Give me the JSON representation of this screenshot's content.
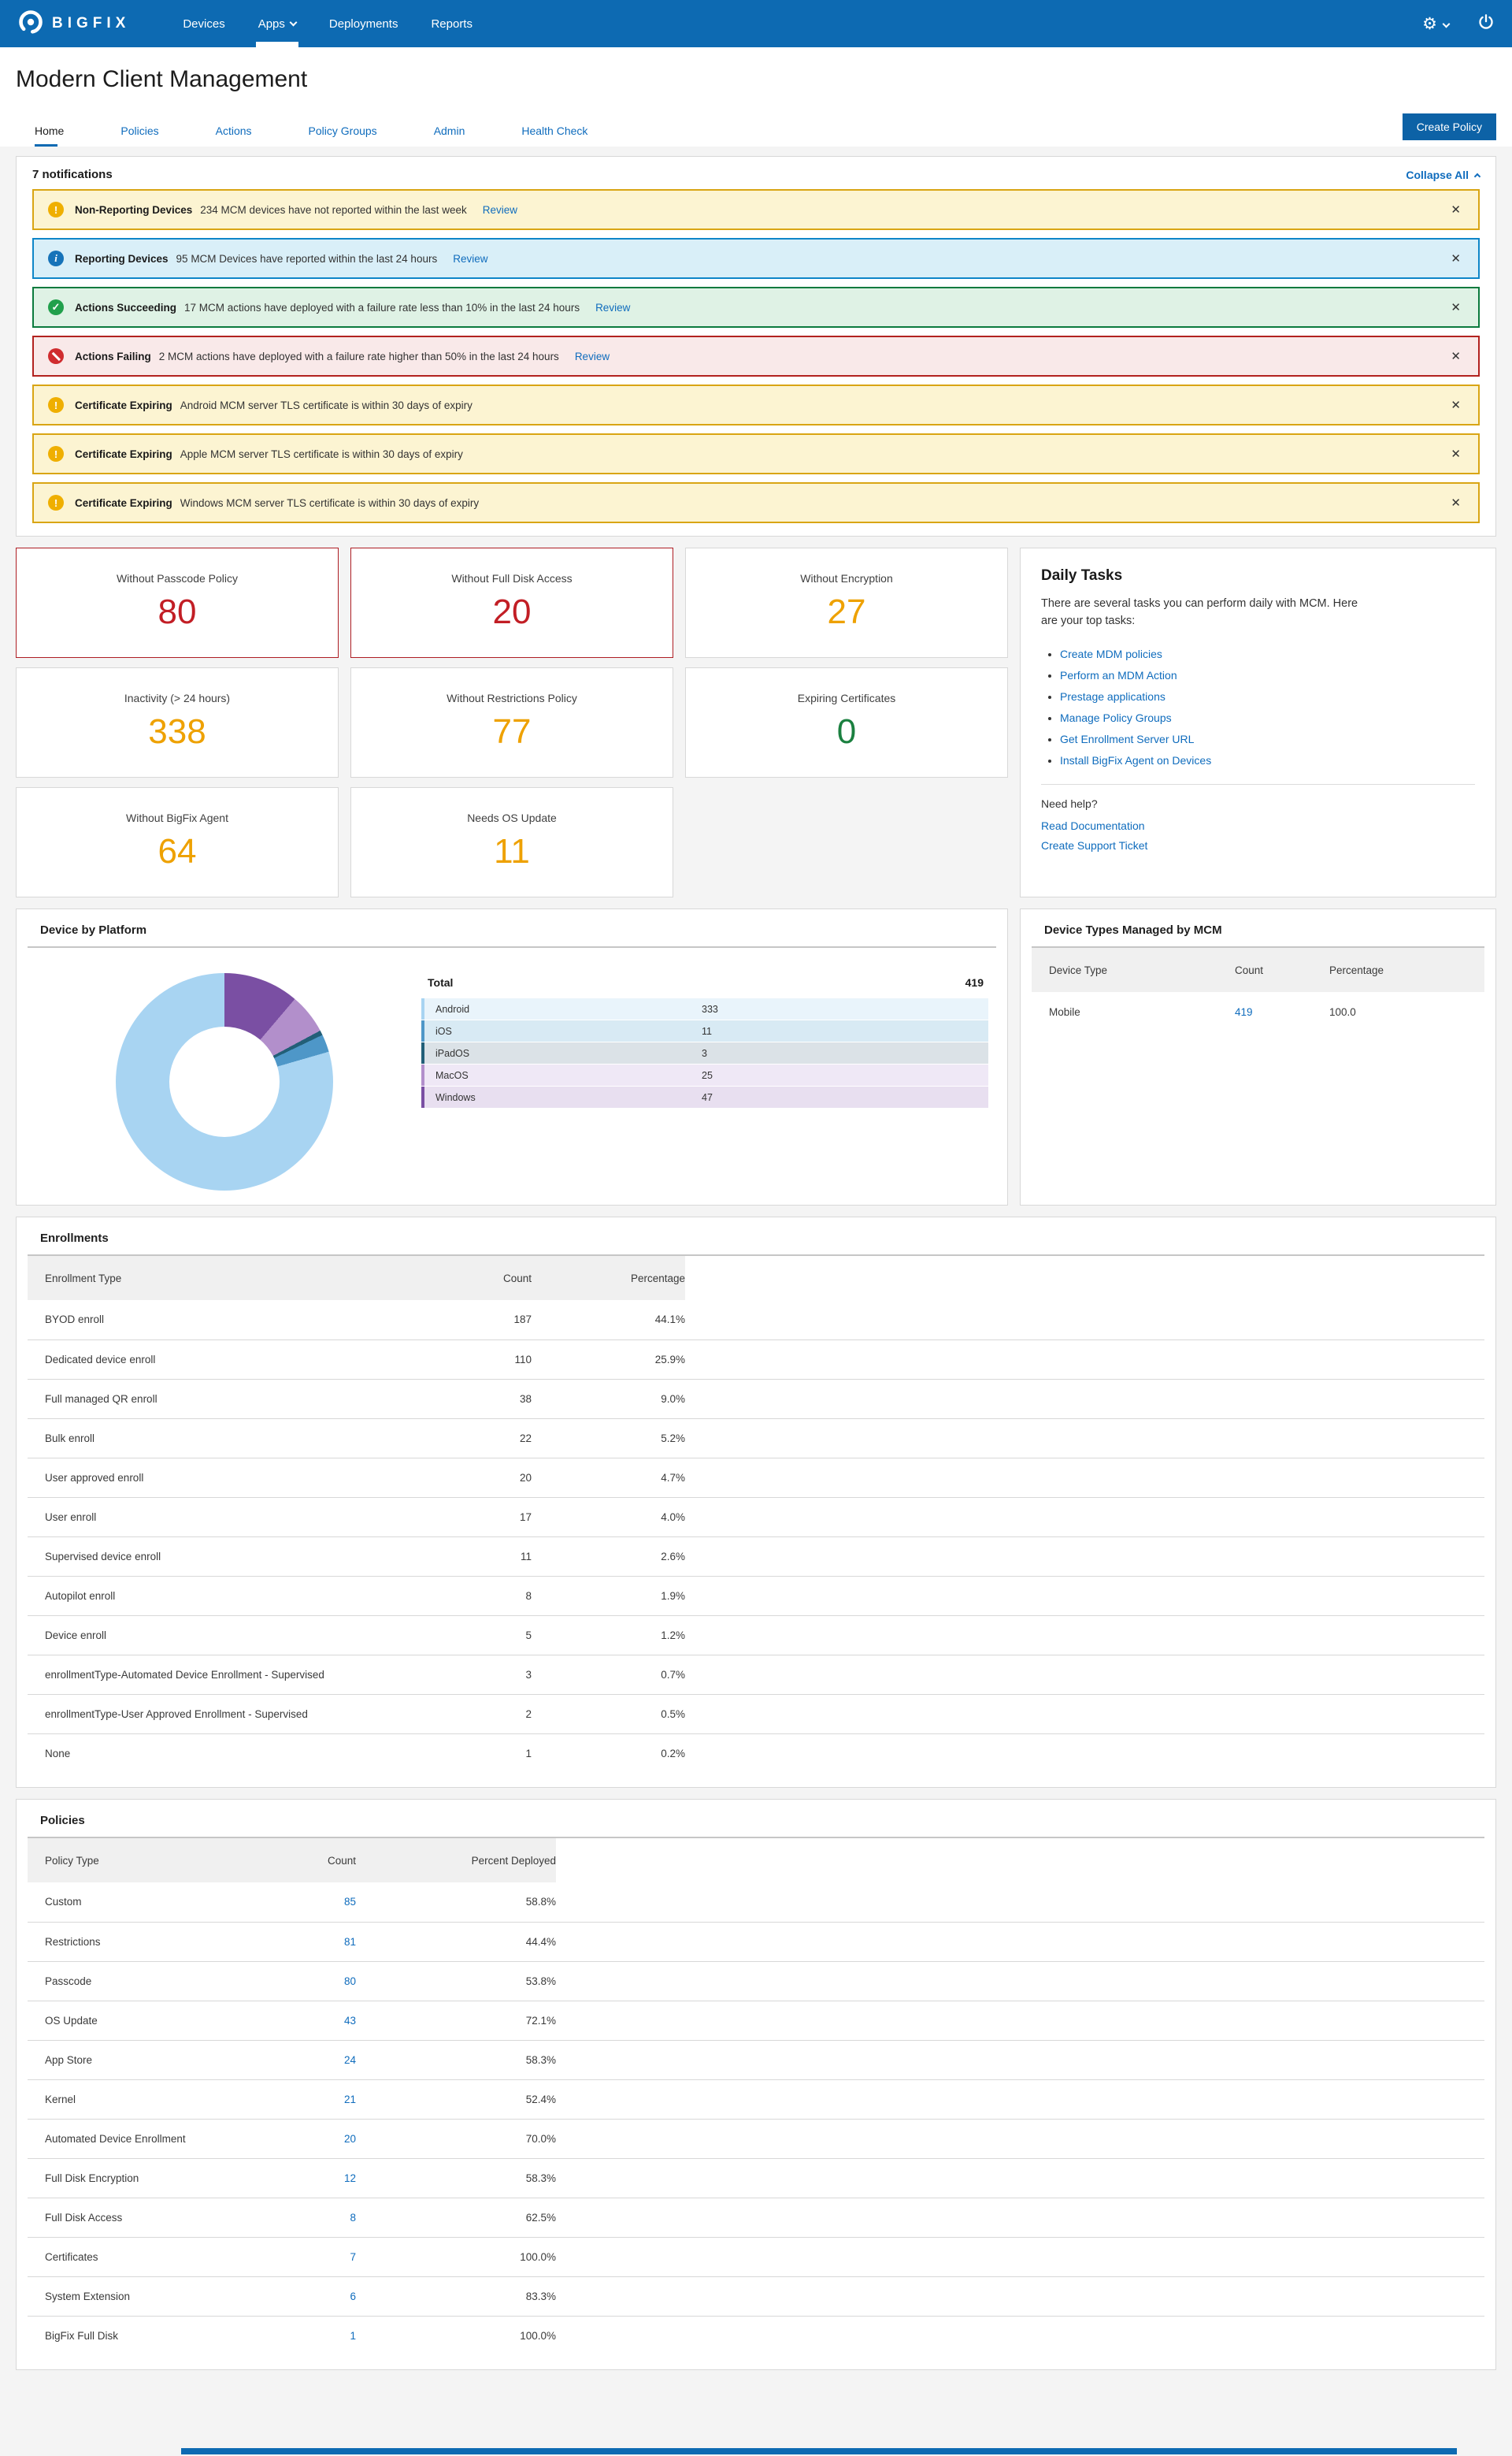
{
  "colors": {
    "nav_blue": "#0d6ab2",
    "link_blue": "#0f6cbd",
    "critical_red": "#c21e25",
    "warning_amber": "#eea100",
    "ok_green": "#1b8040"
  },
  "nav": {
    "brand": "BIGFIX",
    "items": [
      {
        "label": "Devices",
        "active": false,
        "chevron": false
      },
      {
        "label": "Apps",
        "active": true,
        "chevron": true
      },
      {
        "label": "Deployments",
        "active": false,
        "chevron": false
      },
      {
        "label": "Reports",
        "active": false,
        "chevron": false
      }
    ]
  },
  "header": {
    "title": "Modern Client Management"
  },
  "tabs": [
    {
      "label": "Home",
      "active": true
    },
    {
      "label": "Policies",
      "active": false
    },
    {
      "label": "Actions",
      "active": false
    },
    {
      "label": "Policy Groups",
      "active": false
    },
    {
      "label": "Admin",
      "active": false
    },
    {
      "label": "Health Check",
      "active": false
    }
  ],
  "create_policy_label": "Create Policy",
  "notifications": {
    "header": "7 notifications",
    "collapse_all": "Collapse All",
    "items": [
      {
        "type": "warning",
        "title": "Non-Reporting Devices",
        "message": "234 MCM devices have not reported within the last week",
        "review": "Review"
      },
      {
        "type": "info",
        "title": "Reporting Devices",
        "message": "95 MCM Devices have reported within the last 24 hours",
        "review": "Review"
      },
      {
        "type": "success",
        "title": "Actions Succeeding",
        "message": "17 MCM actions have deployed with a failure rate less than 10% in the last 24 hours",
        "review": "Review"
      },
      {
        "type": "error",
        "title": "Actions Failing",
        "message": "2 MCM actions have deployed with a failure rate higher than 50% in the last 24 hours",
        "review": "Review"
      },
      {
        "type": "warning",
        "title": "Certificate Expiring",
        "message": "Android MCM server TLS certificate is within 30 days of expiry",
        "review": null
      },
      {
        "type": "warning",
        "title": "Certificate Expiring",
        "message": "Apple MCM server TLS certificate is within 30 days of expiry",
        "review": null
      },
      {
        "type": "warning",
        "title": "Certificate Expiring",
        "message": "Windows MCM server TLS certificate is within 30 days of expiry",
        "review": null
      }
    ]
  },
  "stat_cards": [
    {
      "label": "Without Passcode Policy",
      "value": "80",
      "severity": "critical"
    },
    {
      "label": "Without Full Disk Access",
      "value": "20",
      "severity": "critical"
    },
    {
      "label": "Without Encryption",
      "value": "27",
      "severity": "warning"
    },
    {
      "label": "Inactivity (> 24 hours)",
      "value": "338",
      "severity": "warning"
    },
    {
      "label": "Without Restrictions Policy",
      "value": "77",
      "severity": "warning"
    },
    {
      "label": "Expiring Certificates",
      "value": "0",
      "severity": "ok"
    },
    {
      "label": "Without BigFix Agent",
      "value": "64",
      "severity": "warning"
    },
    {
      "label": "Needs OS Update",
      "value": "11",
      "severity": "warning"
    }
  ],
  "daily_tasks": {
    "title": "Daily Tasks",
    "intro": "There are several tasks you can perform daily with MCM. Here are your top tasks:",
    "links": [
      "Create MDM policies",
      "Perform an MDM Action",
      "Prestage applications",
      "Manage Policy Groups",
      "Get Enrollment Server URL",
      "Install BigFix Agent on Devices"
    ],
    "need_help": "Need help?",
    "help_links": [
      "Read Documentation",
      "Create Support Ticket"
    ]
  },
  "device_by_platform": {
    "title": "Device by Platform",
    "total_label": "Total",
    "total": "419"
  },
  "chart_data": {
    "type": "pie",
    "title": "Device by Platform",
    "subtype": "donut",
    "categories": [
      "Android",
      "iOS",
      "iPadOS",
      "MacOS",
      "Windows"
    ],
    "values": [
      333,
      11,
      3,
      25,
      47
    ],
    "total": 419,
    "colors": [
      "#a8d4f2",
      "#4e97c8",
      "#225f78",
      "#b28fcb",
      "#7a4fa3"
    ],
    "row_backgrounds": [
      "#e9f4fb",
      "#d8eaf4",
      "#dbe2e7",
      "#efe8f6",
      "#e8dff0"
    ],
    "legend_position": "right",
    "draw_order_clockwise_from_top": [
      "Windows",
      "MacOS",
      "iPadOS",
      "iOS",
      "Android"
    ]
  },
  "device_types": {
    "title": "Device Types Managed by MCM",
    "columns": [
      "Device Type",
      "Count",
      "Percentage"
    ],
    "rows": [
      {
        "type": "Mobile",
        "count": "419",
        "percentage": "100.0"
      }
    ]
  },
  "enrollments": {
    "title": "Enrollments",
    "columns": [
      "Enrollment Type",
      "Count",
      "Percentage"
    ],
    "rows": [
      [
        "BYOD enroll",
        "187",
        "44.1%"
      ],
      [
        "Dedicated device enroll",
        "110",
        "25.9%"
      ],
      [
        "Full managed QR enroll",
        "38",
        "9.0%"
      ],
      [
        "Bulk enroll",
        "22",
        "5.2%"
      ],
      [
        "User approved enroll",
        "20",
        "4.7%"
      ],
      [
        "User enroll",
        "17",
        "4.0%"
      ],
      [
        "Supervised device enroll",
        "11",
        "2.6%"
      ],
      [
        "Autopilot enroll",
        "8",
        "1.9%"
      ],
      [
        "Device enroll",
        "5",
        "1.2%"
      ],
      [
        "enrollmentType-Automated Device Enrollment - Supervised",
        "3",
        "0.7%"
      ],
      [
        "enrollmentType-User Approved Enrollment - Supervised",
        "2",
        "0.5%"
      ],
      [
        "None",
        "1",
        "0.2%"
      ]
    ]
  },
  "policies": {
    "title": "Policies",
    "columns": [
      "Policy Type",
      "Count",
      "Percent Deployed"
    ],
    "rows": [
      [
        "Custom",
        "85",
        "58.8%"
      ],
      [
        "Restrictions",
        "81",
        "44.4%"
      ],
      [
        "Passcode",
        "80",
        "53.8%"
      ],
      [
        "OS Update",
        "43",
        "72.1%"
      ],
      [
        "App Store",
        "24",
        "58.3%"
      ],
      [
        "Kernel",
        "21",
        "52.4%"
      ],
      [
        "Automated Device Enrollment",
        "20",
        "70.0%"
      ],
      [
        "Full Disk Encryption",
        "12",
        "58.3%"
      ],
      [
        "Full Disk Access",
        "8",
        "62.5%"
      ],
      [
        "Certificates",
        "7",
        "100.0%"
      ],
      [
        "System Extension",
        "6",
        "83.3%"
      ],
      [
        "BigFix Full Disk",
        "1",
        "100.0%"
      ]
    ]
  }
}
